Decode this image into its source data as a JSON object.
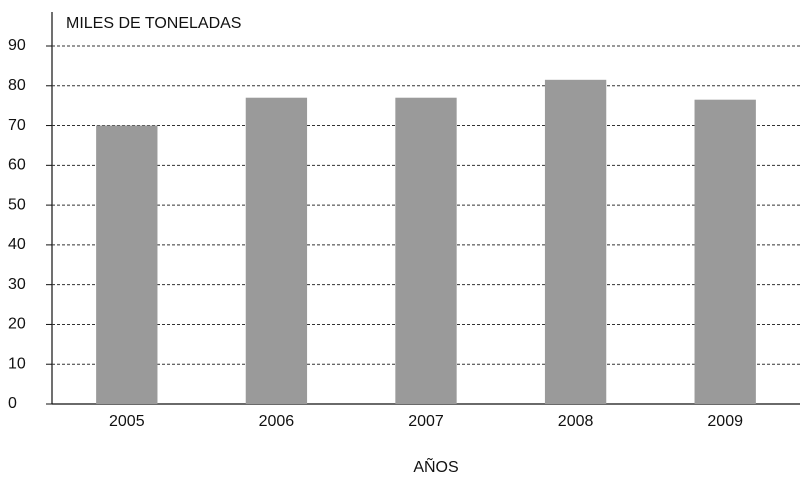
{
  "chart_data": {
    "type": "bar",
    "y_label": "MILES DE TONELADAS",
    "x_label": "AÑOS",
    "categories": [
      "2005",
      "2006",
      "2007",
      "2008",
      "2009"
    ],
    "values": [
      70,
      77,
      77,
      81.5,
      76.5
    ],
    "color": "#9a9a9a",
    "ylim": [
      0,
      90
    ],
    "yticks": [
      0,
      10,
      20,
      30,
      40,
      50,
      60,
      70,
      80,
      90
    ],
    "grid": true
  }
}
